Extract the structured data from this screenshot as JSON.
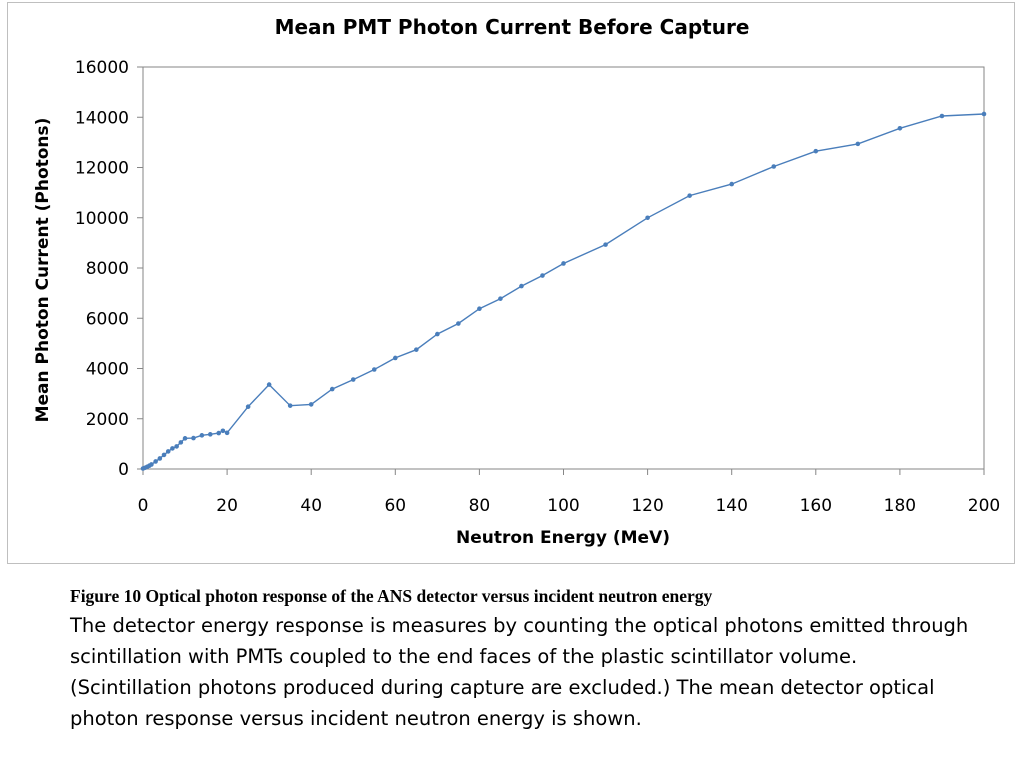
{
  "chart_data": {
    "type": "line",
    "title": "Mean PMT Photon Current Before Capture",
    "xlabel": "Neutron Energy (MeV)",
    "ylabel": "Mean Photon Current (Photons)",
    "xlim": [
      0,
      200
    ],
    "ylim": [
      0,
      16000
    ],
    "x_ticks": [
      0,
      20,
      40,
      60,
      80,
      100,
      120,
      140,
      160,
      180,
      200
    ],
    "y_ticks": [
      0,
      2000,
      4000,
      6000,
      8000,
      10000,
      12000,
      14000,
      16000
    ],
    "grid": false,
    "legend": "none",
    "series": [
      {
        "color": "#4a7ebb",
        "x": [
          0,
          0.5,
          1,
          1.5,
          2,
          3,
          4,
          5,
          6,
          7,
          8,
          9,
          10,
          12,
          14,
          16,
          18,
          19,
          20,
          25,
          30,
          35,
          40,
          45,
          50,
          55,
          60,
          65,
          70,
          75,
          80,
          85,
          90,
          95,
          100,
          110,
          120,
          130,
          140,
          150,
          160,
          170,
          180,
          190,
          200
        ],
        "y": [
          20,
          50,
          90,
          130,
          180,
          300,
          420,
          560,
          700,
          820,
          900,
          1060,
          1220,
          1230,
          1340,
          1380,
          1430,
          1520,
          1440,
          2480,
          3360,
          2520,
          2570,
          3180,
          3560,
          3960,
          4420,
          4750,
          5370,
          5790,
          6380,
          6780,
          7280,
          7700,
          8180,
          8930,
          10000,
          10880,
          11340,
          12040,
          12650,
          12940,
          13560,
          14050,
          14130
        ]
      }
    ]
  },
  "caption": {
    "heading": "Figure 10 Optical photon response of the ANS detector versus incident neutron energy",
    "body": "The detector energy response is measures by counting the optical photons emitted through scintillation with PMTs coupled to  the end faces of the plastic scintillator volume. (Scintillation photons produced during capture are excluded.) The mean detector optical photon response versus incident neutron energy is shown."
  }
}
